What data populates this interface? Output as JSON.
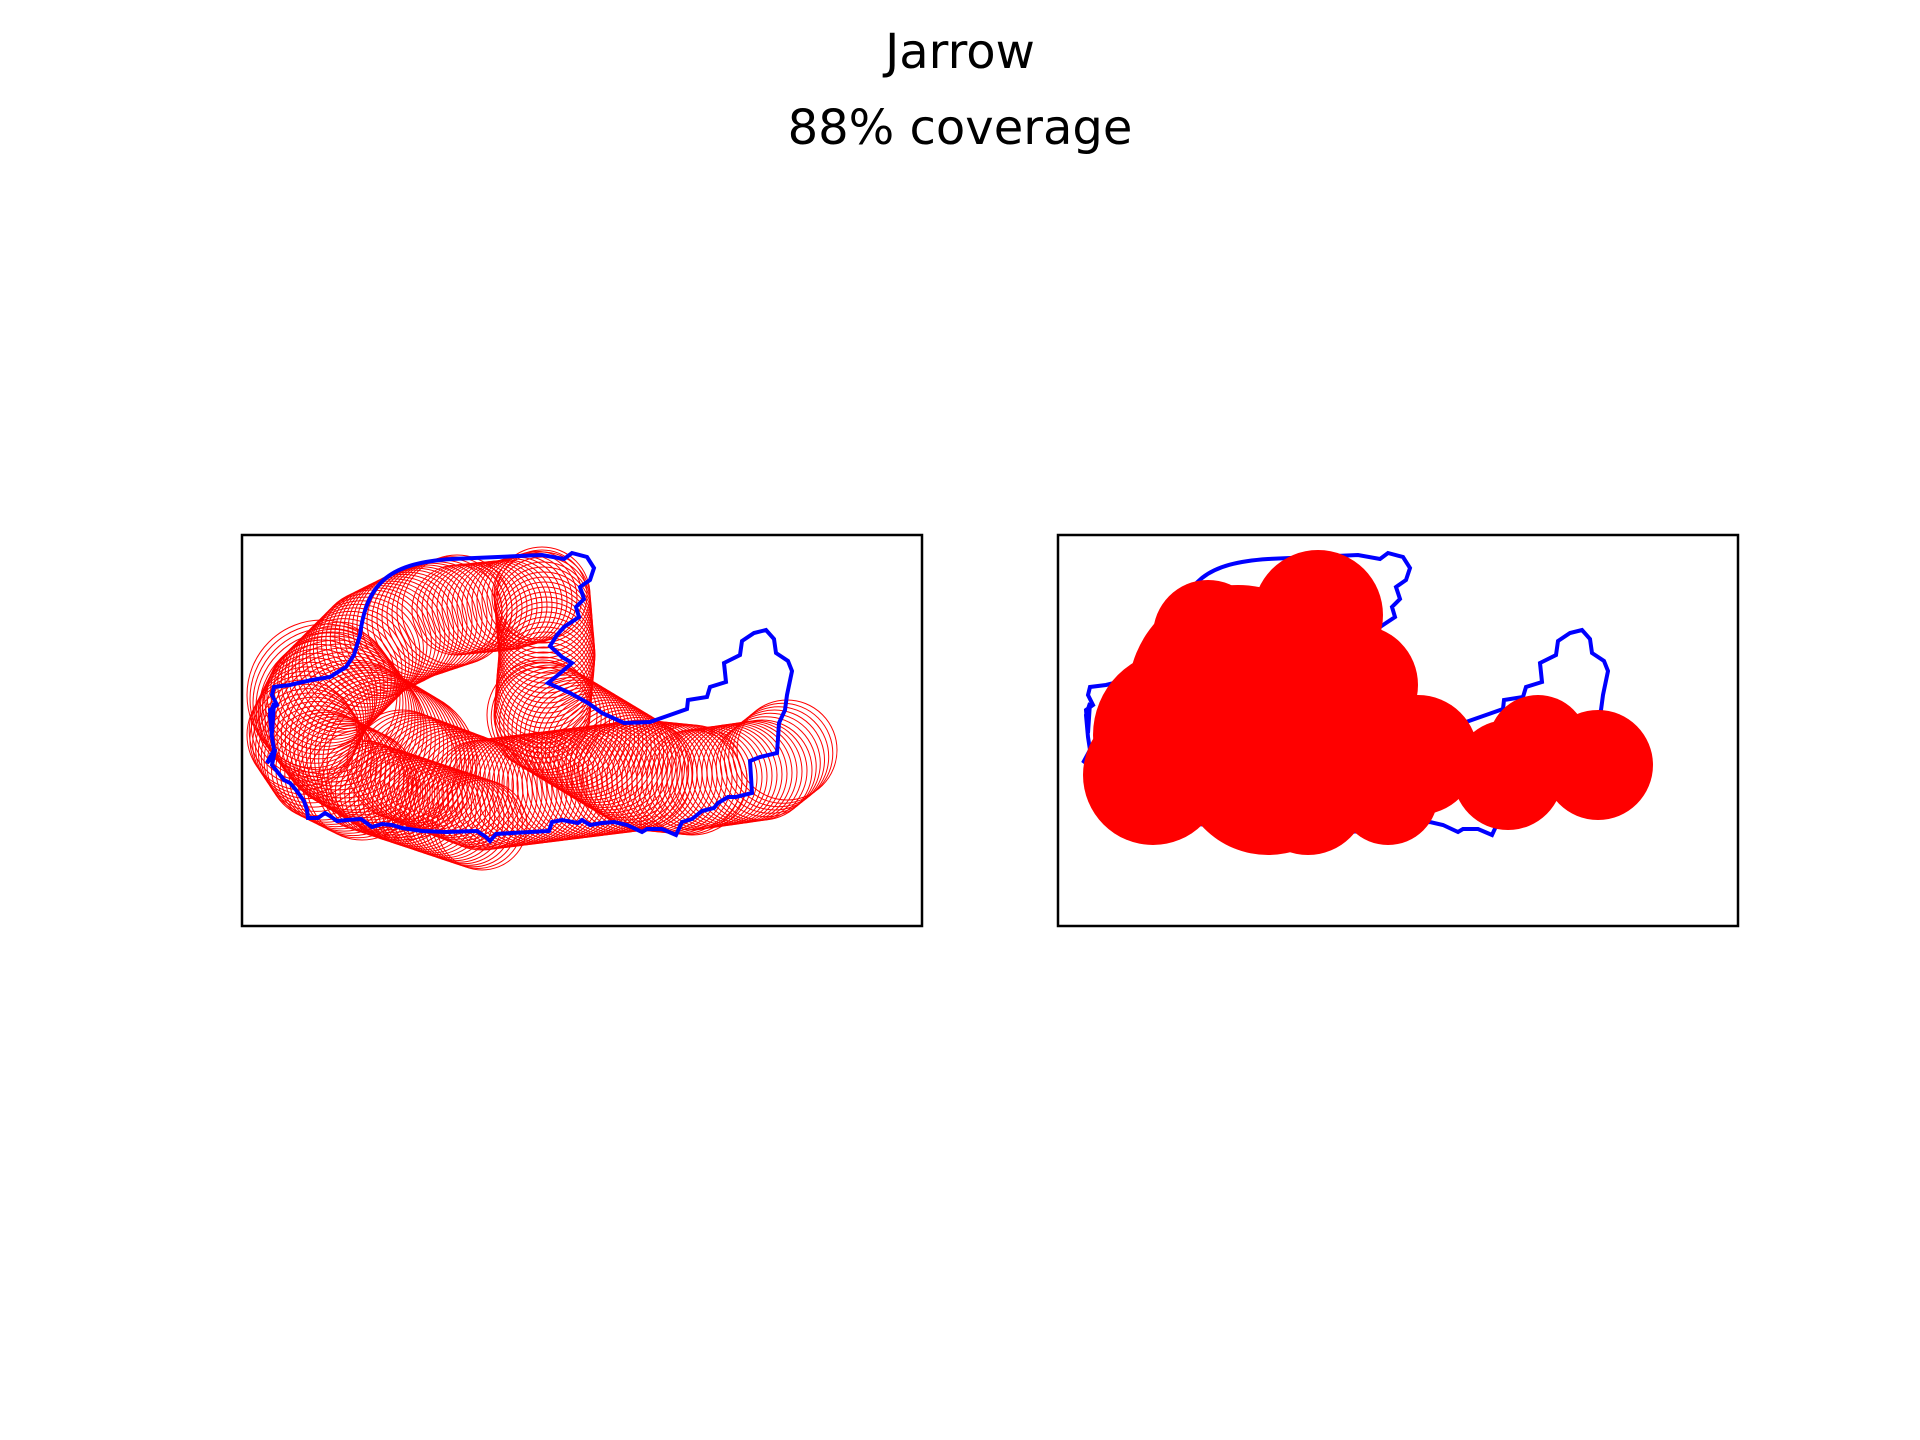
{
  "figure": {
    "title": "Jarrow",
    "subtitle": "88% coverage"
  },
  "colors": {
    "boundary": "#0000ff",
    "coverage": "#ff0000",
    "frame": "#000000",
    "background": "#ffffff"
  },
  "panels": [
    {
      "name": "outline-circles",
      "style": "outline"
    },
    {
      "name": "filled-coverage",
      "style": "filled"
    }
  ],
  "chart_data": {
    "type": "map",
    "region": "Jarrow",
    "coverage_percent": 88,
    "legend": "none"
  }
}
